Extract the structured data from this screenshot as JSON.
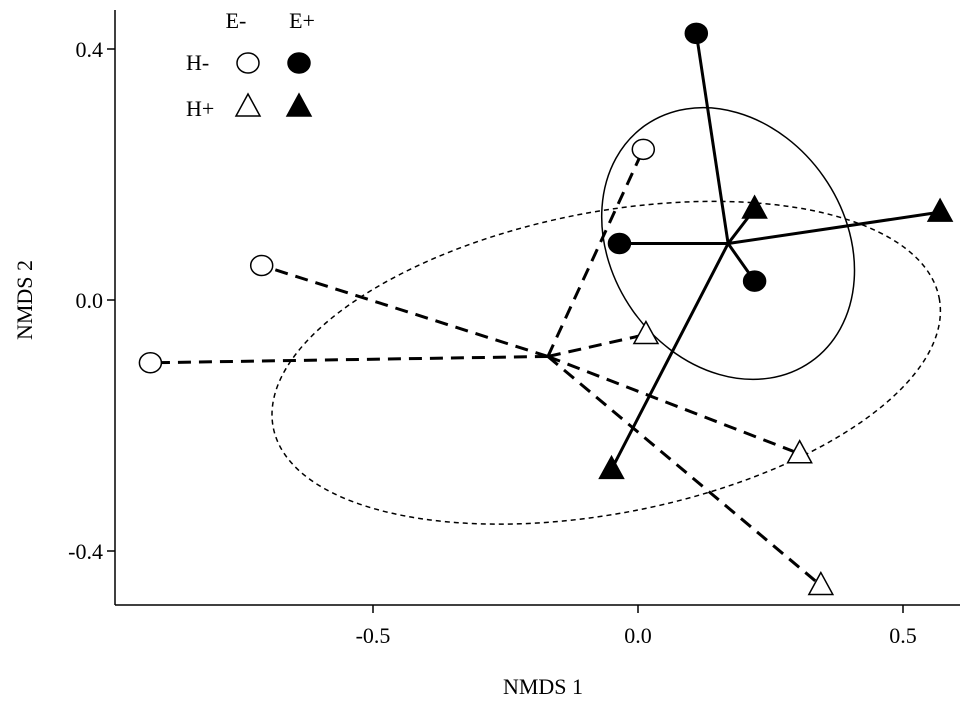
{
  "chart_data": {
    "type": "scatter",
    "xlabel": "NMDS 1",
    "ylabel": "NMDS 2",
    "xlim": [
      -0.97,
      0.6
    ],
    "ylim": [
      -0.49,
      0.47
    ],
    "xticks": [
      -0.5,
      0.0,
      0.5
    ],
    "xtick_labels": [
      "-0.5",
      "0.0",
      "0.5"
    ],
    "yticks": [
      -0.4,
      0.0,
      0.4
    ],
    "ytick_labels": [
      "-0.4",
      "0.0",
      "0.4"
    ],
    "grid": false,
    "legend": {
      "placement": "top-left",
      "column_labels": [
        "E-",
        "E+"
      ],
      "row_labels": [
        "H-",
        "H+"
      ]
    },
    "groups": [
      {
        "id": "H-minus",
        "line_style": "dashed",
        "centroid": [
          -0.17,
          -0.09
        ],
        "ellipse": {
          "center": [
            -0.06,
            -0.1
          ],
          "radius_x": 0.64,
          "radius_y": 0.24,
          "rotation_deg": -11,
          "style": "dotted"
        },
        "points": [
          {
            "x": 0.01,
            "y": 0.24,
            "marker": "circle",
            "filled": false
          },
          {
            "x": -0.71,
            "y": 0.055,
            "marker": "circle",
            "filled": false
          },
          {
            "x": -0.92,
            "y": -0.1,
            "marker": "circle",
            "filled": false
          },
          {
            "x": 0.015,
            "y": -0.055,
            "marker": "triangle",
            "filled": false
          },
          {
            "x": 0.305,
            "y": -0.245,
            "marker": "triangle",
            "filled": false
          },
          {
            "x": 0.345,
            "y": -0.455,
            "marker": "triangle",
            "filled": false
          }
        ]
      },
      {
        "id": "H-plus",
        "line_style": "solid",
        "centroid": [
          0.17,
          0.09
        ],
        "ellipse": {
          "center": [
            0.17,
            0.09
          ],
          "radius_x": 0.22,
          "radius_y": 0.23,
          "rotation_deg": -35,
          "style": "solid"
        },
        "points": [
          {
            "x": 0.11,
            "y": 0.425,
            "marker": "circle",
            "filled": true
          },
          {
            "x": -0.035,
            "y": 0.09,
            "marker": "circle",
            "filled": true
          },
          {
            "x": 0.22,
            "y": 0.03,
            "marker": "circle",
            "filled": true
          },
          {
            "x": 0.22,
            "y": 0.145,
            "marker": "triangle",
            "filled": true
          },
          {
            "x": 0.57,
            "y": 0.14,
            "marker": "triangle",
            "filled": true
          },
          {
            "x": -0.05,
            "y": -0.27,
            "marker": "triangle",
            "filled": true
          }
        ]
      }
    ]
  }
}
